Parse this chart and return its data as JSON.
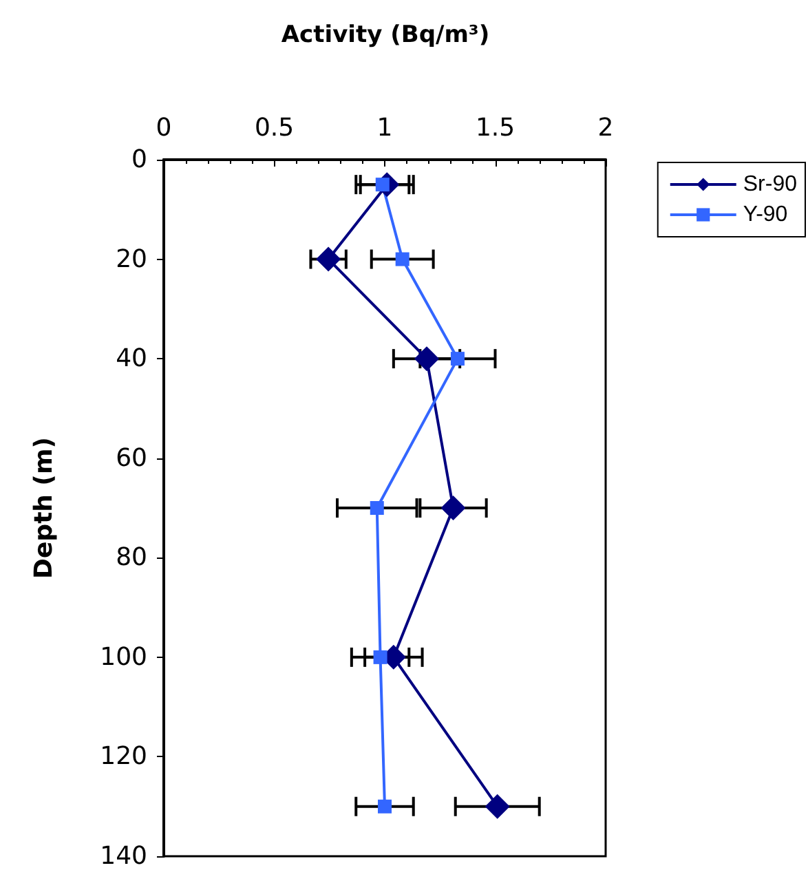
{
  "chart_data": {
    "type": "line",
    "title": "Activity (Bq/m³)",
    "ylabel": "Depth (m)",
    "xlim": [
      0,
      2
    ],
    "xticks": [
      0,
      0.5,
      1,
      1.5,
      2
    ],
    "ylim": [
      140,
      0
    ],
    "yticks": [
      0,
      20,
      40,
      60,
      80,
      100,
      120,
      140
    ],
    "grid": false,
    "legend": "top right",
    "line_style": "solid",
    "series": [
      {
        "name": "Sr-90",
        "color": "#000080",
        "marker": "diamond",
        "x": [
          1.01,
          0.745,
          1.19,
          1.31,
          1.04,
          1.51
        ],
        "values": [
          5,
          20,
          40,
          70,
          100,
          130
        ],
        "xerrors": [
          0.12,
          0.08,
          0.15,
          0.15,
          0.13,
          0.19
        ]
      },
      {
        "name": "Y-90",
        "color": "#3366ff",
        "marker": "square",
        "x": [
          0.99,
          1.08,
          1.33,
          0.965,
          0.98,
          1.0
        ],
        "values": [
          5,
          20,
          40,
          70,
          100,
          130
        ],
        "xerrors": [
          0.12,
          0.14,
          0.17,
          0.18,
          0.13,
          0.13
        ]
      }
    ]
  }
}
